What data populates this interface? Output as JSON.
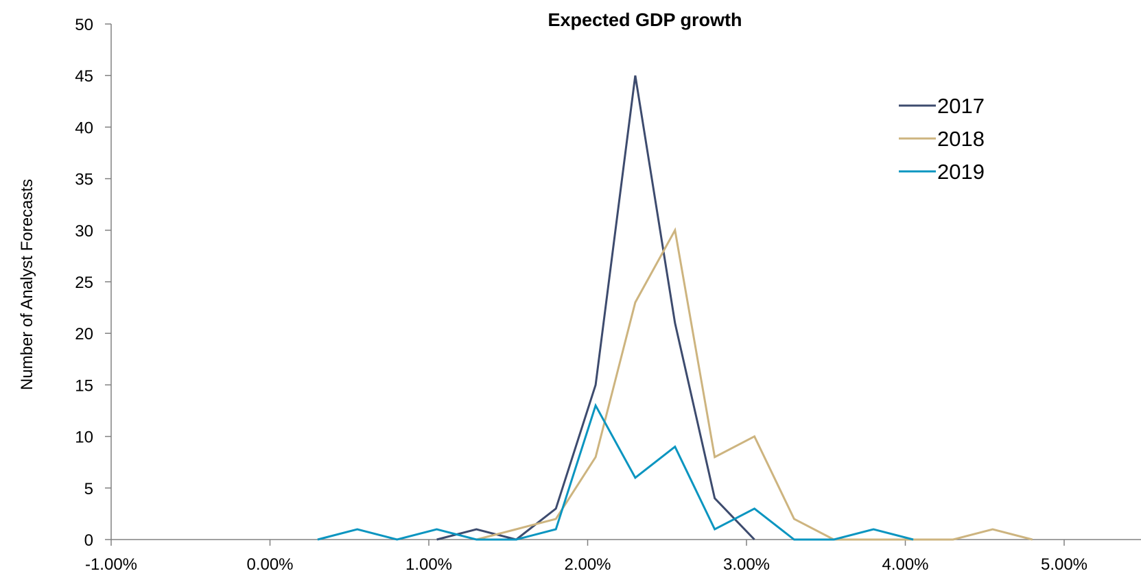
{
  "chart_data": {
    "type": "line",
    "title": "Expected GDP growth",
    "xlabel": "",
    "ylabel": "Number of Analyst Forecasts",
    "xlim": [
      -1.0,
      5.0
    ],
    "ylim": [
      0,
      50
    ],
    "x_ticks": [
      -1.0,
      0.0,
      1.0,
      2.0,
      3.0,
      4.0,
      5.0
    ],
    "x_tick_labels": [
      "-1.00%",
      "0.00%",
      "1.00%",
      "2.00%",
      "3.00%",
      "4.00%",
      "5.00%"
    ],
    "y_ticks": [
      0,
      5,
      10,
      15,
      20,
      25,
      30,
      35,
      40,
      45,
      50
    ],
    "y_tick_labels": [
      "0",
      "5",
      "10",
      "15",
      "20",
      "25",
      "30",
      "35",
      "40",
      "45",
      "50"
    ],
    "grid": false,
    "legend_position": "top-right",
    "series": [
      {
        "name": "2017",
        "color": "#3d4b6e",
        "x": [
          1.05,
          1.3,
          1.55,
          1.8,
          2.05,
          2.3,
          2.55,
          2.8,
          3.05
        ],
        "values": [
          0,
          1,
          0,
          3,
          15,
          45,
          21,
          4,
          0
        ]
      },
      {
        "name": "2018",
        "color": "#cdb47f",
        "x": [
          1.3,
          1.55,
          1.8,
          2.05,
          2.3,
          2.55,
          2.8,
          3.05,
          3.3,
          3.55,
          3.8,
          4.05,
          4.3,
          4.55,
          4.8
        ],
        "values": [
          0,
          1,
          2,
          8,
          23,
          30,
          8,
          10,
          2,
          0,
          0,
          0,
          0,
          1,
          0
        ]
      },
      {
        "name": "2019",
        "color": "#0b95c0",
        "x": [
          0.3,
          0.55,
          0.8,
          1.05,
          1.3,
          1.55,
          1.8,
          2.05,
          2.3,
          2.55,
          2.8,
          3.05,
          3.3,
          3.55,
          3.8,
          4.05
        ],
        "values": [
          0,
          1,
          0,
          1,
          0,
          0,
          1,
          13,
          6,
          9,
          1,
          3,
          0,
          0,
          1,
          0
        ]
      }
    ]
  }
}
